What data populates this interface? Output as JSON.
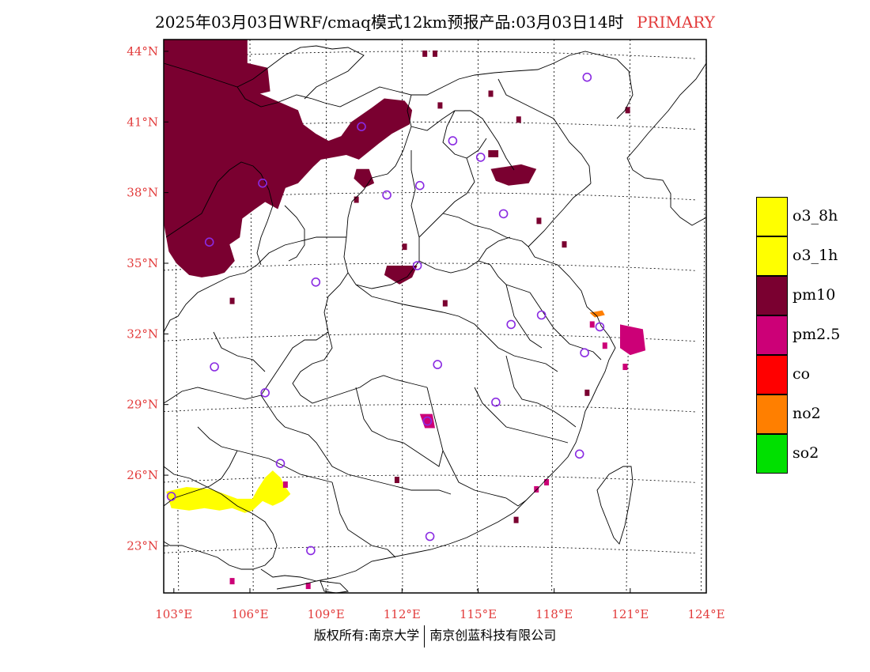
{
  "title": {
    "main": "2025年03月03日WRF/cmaq模式12km预报产品:03月03日14时",
    "product": "PRIMARY"
  },
  "axes": {
    "lat_labels": [
      "44°N",
      "41°N",
      "38°N",
      "35°N",
      "32°N",
      "29°N",
      "26°N",
      "23°N"
    ],
    "lon_labels": [
      "103°E",
      "106°E",
      "109°E",
      "112°E",
      "115°E",
      "118°E",
      "121°E",
      "124°E"
    ]
  },
  "legend": [
    {
      "label": "o3_8h",
      "color": "#ffff00"
    },
    {
      "label": "o3_1h",
      "color": "#ffff00"
    },
    {
      "label": "pm10",
      "color": "#7a0030"
    },
    {
      "label": "pm2.5",
      "color": "#cc0077"
    },
    {
      "label": "co",
      "color": "#ff0000"
    },
    {
      "label": "no2",
      "color": "#ff7f00"
    },
    {
      "label": "so2",
      "color": "#00e000"
    }
  ],
  "colors": {
    "pm10": "#7a0030",
    "pm25": "#cc0077",
    "o3": "#ffff00",
    "no2": "#ff7f00",
    "station": "#8a2be2",
    "boundary": "#000000",
    "grid": "#000000",
    "axis_label": "#e23b3b"
  },
  "stations": [
    {
      "lon": 119.3,
      "lat": 42.9
    },
    {
      "lon": 110.4,
      "lat": 40.8
    },
    {
      "lon": 114.0,
      "lat": 40.2
    },
    {
      "lon": 115.1,
      "lat": 39.5
    },
    {
      "lon": 106.5,
      "lat": 38.4
    },
    {
      "lon": 111.4,
      "lat": 37.9
    },
    {
      "lon": 112.7,
      "lat": 38.3
    },
    {
      "lon": 116.0,
      "lat": 37.1
    },
    {
      "lon": 104.4,
      "lat": 35.9
    },
    {
      "lon": 112.6,
      "lat": 34.9
    },
    {
      "lon": 108.6,
      "lat": 34.2
    },
    {
      "lon": 117.5,
      "lat": 32.8
    },
    {
      "lon": 116.3,
      "lat": 32.4
    },
    {
      "lon": 119.8,
      "lat": 32.3
    },
    {
      "lon": 119.2,
      "lat": 31.2
    },
    {
      "lon": 104.6,
      "lat": 30.6
    },
    {
      "lon": 113.4,
      "lat": 30.7
    },
    {
      "lon": 106.6,
      "lat": 29.5
    },
    {
      "lon": 115.7,
      "lat": 29.1
    },
    {
      "lon": 113.0,
      "lat": 28.3
    },
    {
      "lon": 119.0,
      "lat": 26.9
    },
    {
      "lon": 107.2,
      "lat": 26.5
    },
    {
      "lon": 102.9,
      "lat": 25.1
    },
    {
      "lon": 113.1,
      "lat": 23.4
    },
    {
      "lon": 108.4,
      "lat": 22.8
    }
  ],
  "pollution_areas": [
    {
      "type": "pm10",
      "label": "west-inner-mongolia-gansu",
      "poly": [
        [
          102.6,
          44.5
        ],
        [
          105.9,
          44.5
        ],
        [
          105.9,
          43.5
        ],
        [
          106.7,
          43.3
        ],
        [
          106.8,
          42.3
        ],
        [
          106.4,
          42.2
        ],
        [
          107.9,
          41.5
        ],
        [
          108.1,
          40.9
        ],
        [
          108.6,
          40.5
        ],
        [
          109.1,
          40.2
        ],
        [
          109.6,
          40.4
        ],
        [
          110.0,
          41.0
        ],
        [
          110.8,
          41.6
        ],
        [
          111.3,
          42.0
        ],
        [
          112.1,
          41.9
        ],
        [
          112.4,
          41.5
        ],
        [
          112.3,
          40.9
        ],
        [
          111.6,
          40.5
        ],
        [
          111.1,
          40.1
        ],
        [
          110.3,
          39.4
        ],
        [
          109.8,
          39.6
        ],
        [
          108.8,
          39.4
        ],
        [
          108.5,
          39.1
        ],
        [
          107.9,
          38.4
        ],
        [
          107.4,
          38.2
        ],
        [
          107.1,
          37.3
        ],
        [
          106.6,
          37.6
        ],
        [
          106.2,
          37.3
        ],
        [
          105.7,
          36.9
        ],
        [
          105.6,
          36.1
        ],
        [
          105.2,
          35.8
        ],
        [
          105.4,
          35.1
        ],
        [
          105.0,
          34.6
        ],
        [
          104.7,
          34.5
        ],
        [
          104.1,
          34.4
        ],
        [
          103.6,
          34.5
        ],
        [
          103.1,
          35.0
        ],
        [
          102.8,
          35.5
        ],
        [
          102.6,
          36.7
        ]
      ]
    },
    {
      "type": "pm10",
      "label": "small-ningxia",
      "poly": [
        [
          110.2,
          39.0
        ],
        [
          110.7,
          39.0
        ],
        [
          110.9,
          38.4
        ],
        [
          110.5,
          38.2
        ],
        [
          110.1,
          38.6
        ]
      ]
    },
    {
      "type": "pm10",
      "label": "tianjin",
      "poly": [
        [
          115.5,
          39.0
        ],
        [
          116.7,
          39.2
        ],
        [
          117.3,
          39.0
        ],
        [
          117.0,
          38.4
        ],
        [
          116.2,
          38.3
        ],
        [
          115.7,
          38.5
        ]
      ]
    },
    {
      "type": "pm10",
      "label": "central-henan",
      "poly": [
        [
          111.4,
          34.9
        ],
        [
          112.6,
          34.9
        ],
        [
          112.4,
          34.4
        ],
        [
          111.9,
          34.1
        ],
        [
          111.3,
          34.5
        ]
      ]
    },
    {
      "type": "pm10",
      "label": "hebei-north",
      "poly": [
        [
          115.4,
          39.8
        ],
        [
          115.8,
          39.8
        ],
        [
          115.8,
          39.5
        ],
        [
          115.4,
          39.5
        ]
      ]
    },
    {
      "type": "pm25",
      "label": "shanghai",
      "poly": [
        [
          120.6,
          32.4
        ],
        [
          121.5,
          32.2
        ],
        [
          121.6,
          31.3
        ],
        [
          121.0,
          31.1
        ],
        [
          120.6,
          31.4
        ]
      ]
    },
    {
      "type": "pm25",
      "label": "changsha",
      "poly": [
        [
          112.7,
          28.6
        ],
        [
          113.2,
          28.6
        ],
        [
          113.3,
          28.0
        ],
        [
          112.9,
          28.0
        ]
      ]
    },
    {
      "type": "o3",
      "label": "yunnan-guangxi-band",
      "poly": [
        [
          102.7,
          25.3
        ],
        [
          103.5,
          25.5
        ],
        [
          104.5,
          25.4
        ],
        [
          105.5,
          25.0
        ],
        [
          106.1,
          25.0
        ],
        [
          106.3,
          25.4
        ],
        [
          106.6,
          25.9
        ],
        [
          106.9,
          26.2
        ],
        [
          107.2,
          25.9
        ],
        [
          107.4,
          25.5
        ],
        [
          107.6,
          25.2
        ],
        [
          107.3,
          24.9
        ],
        [
          106.9,
          24.7
        ],
        [
          106.5,
          24.9
        ],
        [
          106.1,
          24.5
        ],
        [
          105.8,
          24.4
        ],
        [
          105.3,
          24.6
        ],
        [
          104.8,
          24.5
        ],
        [
          104.2,
          24.6
        ],
        [
          103.6,
          24.5
        ],
        [
          102.9,
          24.6
        ]
      ]
    },
    {
      "type": "no2",
      "label": "jiangsu-nantong",
      "poly": [
        [
          119.4,
          32.9
        ],
        [
          119.9,
          33.0
        ],
        [
          120.0,
          32.8
        ],
        [
          119.6,
          32.7
        ]
      ]
    }
  ],
  "pollution_dots": [
    {
      "type": "pm10",
      "lon": 120.9,
      "lat": 41.5
    },
    {
      "type": "pm10",
      "lon": 112.9,
      "lat": 43.9
    },
    {
      "type": "pm10",
      "lon": 113.3,
      "lat": 43.9
    },
    {
      "type": "pm10",
      "lon": 115.5,
      "lat": 42.2
    },
    {
      "type": "pm10",
      "lon": 113.5,
      "lat": 41.7
    },
    {
      "type": "pm10",
      "lon": 116.6,
      "lat": 41.1
    },
    {
      "type": "pm10",
      "lon": 117.4,
      "lat": 36.8
    },
    {
      "type": "pm10",
      "lon": 118.4,
      "lat": 35.8
    },
    {
      "type": "pm10",
      "lon": 110.2,
      "lat": 37.7
    },
    {
      "type": "pm10",
      "lon": 112.1,
      "lat": 35.7
    },
    {
      "type": "pm10",
      "lon": 113.7,
      "lat": 33.3
    },
    {
      "type": "pm10",
      "lon": 105.3,
      "lat": 33.4
    },
    {
      "type": "pm10",
      "lon": 111.8,
      "lat": 25.8
    },
    {
      "type": "pm10",
      "lon": 116.5,
      "lat": 24.1
    },
    {
      "type": "pm10",
      "lon": 119.3,
      "lat": 29.5
    },
    {
      "type": "pm25",
      "lon": 108.3,
      "lat": 21.3
    },
    {
      "type": "pm25",
      "lon": 105.3,
      "lat": 21.5
    },
    {
      "type": "pm25",
      "lon": 120.8,
      "lat": 30.6
    },
    {
      "type": "pm25",
      "lon": 119.5,
      "lat": 32.4
    },
    {
      "type": "pm25",
      "lon": 117.7,
      "lat": 25.7
    },
    {
      "type": "pm25",
      "lon": 117.3,
      "lat": 25.4
    },
    {
      "type": "pm25",
      "lon": 107.4,
      "lat": 25.6
    },
    {
      "type": "pm25",
      "lon": 120.0,
      "lat": 31.5
    }
  ],
  "copyright": {
    "left": "版权所有:南京大学",
    "right": "南京创蓝科技有限公司"
  }
}
